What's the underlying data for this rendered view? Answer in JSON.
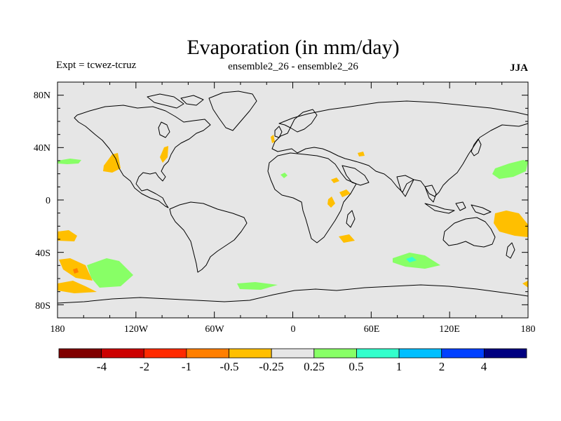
{
  "title": "Evaporation (in mm/day)",
  "expt_label": "Expt = tcwez-tcruz",
  "ensemble_label": "ensemble2_26 - ensemble2_26",
  "season": "JJA",
  "lat_ticks": [
    "80N",
    "40N",
    "0",
    "40S",
    "80S"
  ],
  "lon_ticks": [
    "180",
    "120W",
    "60W",
    "0",
    "60E",
    "120E",
    "180"
  ],
  "colorbar": {
    "labels": [
      "-4",
      "-2",
      "-1",
      "-0.5",
      "-0.25",
      "0.25",
      "0.5",
      "1",
      "2",
      "4"
    ],
    "colors": [
      "#800000",
      "#cc0000",
      "#ff2a00",
      "#ff7f00",
      "#ffbf00",
      "#e6e6e6",
      "#88ff66",
      "#33ffcc",
      "#00bfff",
      "#0040ff",
      "#000080"
    ]
  },
  "colors": {
    "ocean_background": "#e6e6e6",
    "coastline": "#000000"
  }
}
